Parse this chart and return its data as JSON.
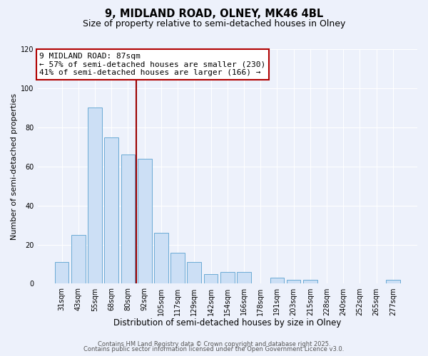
{
  "title": "9, MIDLAND ROAD, OLNEY, MK46 4BL",
  "subtitle": "Size of property relative to semi-detached houses in Olney",
  "xlabel": "Distribution of semi-detached houses by size in Olney",
  "ylabel": "Number of semi-detached properties",
  "bar_labels": [
    "31sqm",
    "43sqm",
    "55sqm",
    "68sqm",
    "80sqm",
    "92sqm",
    "105sqm",
    "117sqm",
    "129sqm",
    "142sqm",
    "154sqm",
    "166sqm",
    "178sqm",
    "191sqm",
    "203sqm",
    "215sqm",
    "228sqm",
    "240sqm",
    "252sqm",
    "265sqm",
    "277sqm"
  ],
  "bar_values": [
    11,
    25,
    90,
    75,
    66,
    64,
    26,
    16,
    11,
    5,
    6,
    6,
    0,
    3,
    2,
    2,
    0,
    0,
    0,
    0,
    2
  ],
  "bar_color": "#ccdff5",
  "bar_edge_color": "#6aaad4",
  "ylim": [
    0,
    120
  ],
  "yticks": [
    0,
    20,
    40,
    60,
    80,
    100,
    120
  ],
  "vline_color": "#9b0000",
  "annotation_title": "9 MIDLAND ROAD: 87sqm",
  "annotation_line1": "← 57% of semi-detached houses are smaller (230)",
  "annotation_line2": "41% of semi-detached houses are larger (166) →",
  "annotation_box_color": "#ffffff",
  "annotation_box_edge": "#b00000",
  "footer1": "Contains HM Land Registry data © Crown copyright and database right 2025.",
  "footer2": "Contains public sector information licensed under the Open Government Licence v3.0.",
  "background_color": "#edf1fb",
  "plot_background": "#edf1fb",
  "grid_color": "#ffffff",
  "title_fontsize": 10.5,
  "subtitle_fontsize": 9,
  "xlabel_fontsize": 8.5,
  "ylabel_fontsize": 8,
  "tick_fontsize": 7,
  "ann_fontsize": 8,
  "footer_fontsize": 6
}
